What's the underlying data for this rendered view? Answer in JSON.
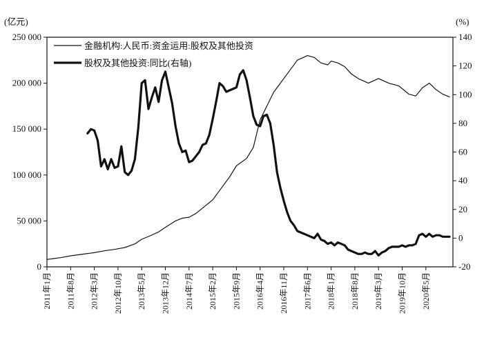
{
  "chart_data": {
    "type": "line",
    "left_unit": "(亿元)",
    "right_unit": "(%)",
    "y_left": {
      "lim": [
        0,
        250000
      ],
      "ticks": [
        0,
        50000,
        100000,
        150000,
        200000,
        250000
      ],
      "tick_labels": [
        "0",
        "50 000",
        "100 000",
        "150 000",
        "200 000",
        "250 000"
      ]
    },
    "y_right": {
      "lim": [
        -20,
        140
      ],
      "ticks": [
        -20,
        0,
        20,
        40,
        60,
        80,
        100,
        120,
        140
      ],
      "tick_labels": [
        "-20",
        "0",
        "20",
        "40",
        "60",
        "80",
        "100",
        "120",
        "140"
      ]
    },
    "x": {
      "start": "2011-01",
      "end": "2021-01",
      "tick_dates": [
        "2011-01",
        "2011-08",
        "2012-03",
        "2012-10",
        "2013-05",
        "2013-12",
        "2014-07",
        "2015-02",
        "2015-09",
        "2016-04",
        "2016-11",
        "2017-06",
        "2018-01",
        "2018-08",
        "2019-03",
        "2019-10",
        "2020-05"
      ],
      "tick_labels": [
        "2011年1月",
        "2011年8月",
        "2012年3月",
        "2012年10月",
        "2013年5月",
        "2013年12月",
        "2014年7月",
        "2015年2月",
        "2015年9月",
        "2016年4月",
        "2016年11月",
        "2017年6月",
        "2018年1月",
        "2018年8月",
        "2019年3月",
        "2019年10月",
        "2020年5月"
      ]
    },
    "grid": false,
    "legend_position": "top-left",
    "series": [
      {
        "name": "金融机构:人民币:资金运用:股权及其他投资",
        "axis": "left",
        "style": "thin",
        "color": "#111111",
        "points": [
          [
            "2011-01",
            8000
          ],
          [
            "2011-03",
            9000
          ],
          [
            "2011-05",
            10000
          ],
          [
            "2011-08",
            12000
          ],
          [
            "2011-11",
            13500
          ],
          [
            "2012-03",
            15500
          ],
          [
            "2012-06",
            17500
          ],
          [
            "2012-09",
            19000
          ],
          [
            "2012-12",
            21000
          ],
          [
            "2013-03",
            25000
          ],
          [
            "2013-05",
            30000
          ],
          [
            "2013-07",
            33000
          ],
          [
            "2013-10",
            38000
          ],
          [
            "2013-12",
            43000
          ],
          [
            "2014-03",
            50000
          ],
          [
            "2014-05",
            53000
          ],
          [
            "2014-07",
            54000
          ],
          [
            "2014-09",
            58000
          ],
          [
            "2014-12",
            67000
          ],
          [
            "2015-02",
            73000
          ],
          [
            "2015-05",
            88000
          ],
          [
            "2015-07",
            98000
          ],
          [
            "2015-09",
            110000
          ],
          [
            "2015-12",
            118000
          ],
          [
            "2016-02",
            130000
          ],
          [
            "2016-04",
            160000
          ],
          [
            "2016-06",
            175000
          ],
          [
            "2016-08",
            190000
          ],
          [
            "2016-10",
            200000
          ],
          [
            "2016-12",
            210000
          ],
          [
            "2017-03",
            225000
          ],
          [
            "2017-06",
            230000
          ],
          [
            "2017-08",
            228000
          ],
          [
            "2017-10",
            222000
          ],
          [
            "2017-12",
            220000
          ],
          [
            "2018-01",
            224000
          ],
          [
            "2018-03",
            222000
          ],
          [
            "2018-05",
            218000
          ],
          [
            "2018-07",
            210000
          ],
          [
            "2018-09",
            205000
          ],
          [
            "2018-12",
            200000
          ],
          [
            "2019-03",
            205000
          ],
          [
            "2019-06",
            200000
          ],
          [
            "2019-09",
            197000
          ],
          [
            "2019-12",
            188000
          ],
          [
            "2020-02",
            186000
          ],
          [
            "2020-04",
            195000
          ],
          [
            "2020-06",
            200000
          ],
          [
            "2020-08",
            193000
          ],
          [
            "2020-10",
            188000
          ],
          [
            "2020-12",
            185000
          ]
        ]
      },
      {
        "name": "股权及其他投资:同比(右轴)",
        "axis": "right",
        "style": "thick",
        "color": "#111111",
        "points": [
          [
            "2012-01",
            73
          ],
          [
            "2012-02",
            76
          ],
          [
            "2012-03",
            75
          ],
          [
            "2012-04",
            68
          ],
          [
            "2012-05",
            50
          ],
          [
            "2012-06",
            55
          ],
          [
            "2012-07",
            48
          ],
          [
            "2012-08",
            55
          ],
          [
            "2012-09",
            49
          ],
          [
            "2012-10",
            50
          ],
          [
            "2012-11",
            64
          ],
          [
            "2012-12",
            46
          ],
          [
            "2013-01",
            44
          ],
          [
            "2013-02",
            47
          ],
          [
            "2013-03",
            55
          ],
          [
            "2013-04",
            77
          ],
          [
            "2013-05",
            108
          ],
          [
            "2013-06",
            110
          ],
          [
            "2013-07",
            90
          ],
          [
            "2013-08",
            98
          ],
          [
            "2013-09",
            105
          ],
          [
            "2013-10",
            95
          ],
          [
            "2013-11",
            110
          ],
          [
            "2013-12",
            116
          ],
          [
            "2014-01",
            105
          ],
          [
            "2014-02",
            94
          ],
          [
            "2014-03",
            78
          ],
          [
            "2014-04",
            66
          ],
          [
            "2014-05",
            60
          ],
          [
            "2014-06",
            61
          ],
          [
            "2014-07",
            53
          ],
          [
            "2014-08",
            54
          ],
          [
            "2014-09",
            57
          ],
          [
            "2014-10",
            60
          ],
          [
            "2014-11",
            65
          ],
          [
            "2014-12",
            66
          ],
          [
            "2015-01",
            72
          ],
          [
            "2015-02",
            83
          ],
          [
            "2015-03",
            95
          ],
          [
            "2015-04",
            108
          ],
          [
            "2015-05",
            106
          ],
          [
            "2015-06",
            102
          ],
          [
            "2015-07",
            103
          ],
          [
            "2015-08",
            104
          ],
          [
            "2015-09",
            105
          ],
          [
            "2015-10",
            114
          ],
          [
            "2015-11",
            117
          ],
          [
            "2015-12",
            110
          ],
          [
            "2016-01",
            98
          ],
          [
            "2016-02",
            85
          ],
          [
            "2016-03",
            79
          ],
          [
            "2016-04",
            78
          ],
          [
            "2016-05",
            85
          ],
          [
            "2016-06",
            86
          ],
          [
            "2016-07",
            80
          ],
          [
            "2016-08",
            65
          ],
          [
            "2016-09",
            46
          ],
          [
            "2016-10",
            35
          ],
          [
            "2016-11",
            26
          ],
          [
            "2016-12",
            18
          ],
          [
            "2017-01",
            12
          ],
          [
            "2017-02",
            9
          ],
          [
            "2017-03",
            5
          ],
          [
            "2017-04",
            4
          ],
          [
            "2017-05",
            3
          ],
          [
            "2017-06",
            2
          ],
          [
            "2017-07",
            1
          ],
          [
            "2017-08",
            0
          ],
          [
            "2017-09",
            3
          ],
          [
            "2017-10",
            -1
          ],
          [
            "2017-11",
            -2
          ],
          [
            "2017-12",
            -4
          ],
          [
            "2018-01",
            -3
          ],
          [
            "2018-02",
            -5
          ],
          [
            "2018-03",
            -3
          ],
          [
            "2018-04",
            -4
          ],
          [
            "2018-05",
            -5
          ],
          [
            "2018-06",
            -8
          ],
          [
            "2018-07",
            -9
          ],
          [
            "2018-08",
            -10
          ],
          [
            "2018-09",
            -11
          ],
          [
            "2018-10",
            -11
          ],
          [
            "2018-11",
            -10
          ],
          [
            "2018-12",
            -11
          ],
          [
            "2019-01",
            -11
          ],
          [
            "2019-02",
            -9
          ],
          [
            "2019-03",
            -12
          ],
          [
            "2019-04",
            -10
          ],
          [
            "2019-05",
            -9
          ],
          [
            "2019-06",
            -7
          ],
          [
            "2019-07",
            -6
          ],
          [
            "2019-08",
            -6
          ],
          [
            "2019-09",
            -6
          ],
          [
            "2019-10",
            -5
          ],
          [
            "2019-11",
            -6
          ],
          [
            "2019-12",
            -5
          ],
          [
            "2020-01",
            -5
          ],
          [
            "2020-02",
            -4
          ],
          [
            "2020-03",
            2
          ],
          [
            "2020-04",
            3
          ],
          [
            "2020-05",
            1
          ],
          [
            "2020-06",
            3
          ],
          [
            "2020-07",
            1
          ],
          [
            "2020-08",
            2
          ],
          [
            "2020-09",
            2
          ],
          [
            "2020-10",
            1
          ],
          [
            "2020-11",
            1
          ],
          [
            "2020-12",
            1
          ]
        ]
      }
    ]
  }
}
